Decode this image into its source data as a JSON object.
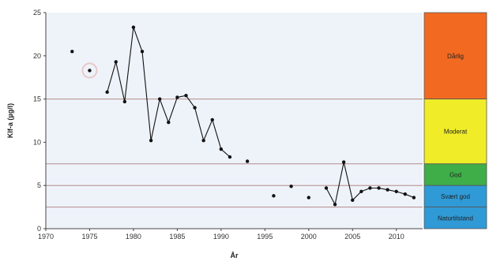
{
  "chart_data": {
    "type": "line",
    "xlabel": "År",
    "ylabel": "Klf-a (µg/l)",
    "xlim": [
      1970,
      2013
    ],
    "ylim": [
      0,
      25
    ],
    "x_ticks": [
      "1970",
      "1975",
      "1980",
      "1985",
      "1990",
      "1995",
      "2000",
      "2005",
      "2010"
    ],
    "y_ticks": [
      "0",
      "5",
      "10",
      "15",
      "20",
      "25"
    ],
    "grid": false,
    "series_color": "#111111",
    "background_color": "#eef3fa",
    "isolated_points": [
      {
        "x": 1973,
        "y": 20.5
      },
      {
        "x": 1975,
        "y": 18.3
      },
      {
        "x": 1993,
        "y": 7.8
      },
      {
        "x": 1996,
        "y": 3.8
      },
      {
        "x": 1998,
        "y": 4.9
      },
      {
        "x": 2000,
        "y": 3.6
      }
    ],
    "line_segments": [
      [
        {
          "x": 1977,
          "y": 15.8
        },
        {
          "x": 1978,
          "y": 19.3
        },
        {
          "x": 1979,
          "y": 14.7
        },
        {
          "x": 1980,
          "y": 23.3
        },
        {
          "x": 1981,
          "y": 20.5
        },
        {
          "x": 1982,
          "y": 10.2
        },
        {
          "x": 1983,
          "y": 15.0
        },
        {
          "x": 1984,
          "y": 12.3
        },
        {
          "x": 1985,
          "y": 15.2
        },
        {
          "x": 1986,
          "y": 15.4
        },
        {
          "x": 1987,
          "y": 14.0
        },
        {
          "x": 1988,
          "y": 10.2
        },
        {
          "x": 1989,
          "y": 12.6
        },
        {
          "x": 1990,
          "y": 9.2
        },
        {
          "x": 1991,
          "y": 8.3
        }
      ],
      [
        {
          "x": 2002,
          "y": 4.7
        },
        {
          "x": 2003,
          "y": 2.8
        },
        {
          "x": 2004,
          "y": 7.7
        },
        {
          "x": 2005,
          "y": 3.3
        },
        {
          "x": 2006,
          "y": 4.3
        },
        {
          "x": 2007,
          "y": 4.7
        },
        {
          "x": 2008,
          "y": 4.7
        },
        {
          "x": 2009,
          "y": 4.5
        },
        {
          "x": 2010,
          "y": 4.3
        },
        {
          "x": 2011,
          "y": 4.0
        },
        {
          "x": 2012,
          "y": 3.6
        }
      ]
    ],
    "class_boundaries": [
      2.5,
      5,
      7.5,
      15
    ],
    "boundary_color": "#b58a8a",
    "status_classes": [
      {
        "label": "Dårlig",
        "from": 15,
        "to": 25,
        "color": "#f26a22"
      },
      {
        "label": "Moderat",
        "from": 7.5,
        "to": 15,
        "color": "#f0ec28"
      },
      {
        "label": "God",
        "from": 5,
        "to": 7.5,
        "color": "#3fae49"
      },
      {
        "label": "Svært god",
        "from": 2.5,
        "to": 5,
        "color": "#2f9ad6"
      },
      {
        "label": "Naturtilstand",
        "from": 0,
        "to": 2.5,
        "color": "#2f9ad6"
      }
    ]
  }
}
